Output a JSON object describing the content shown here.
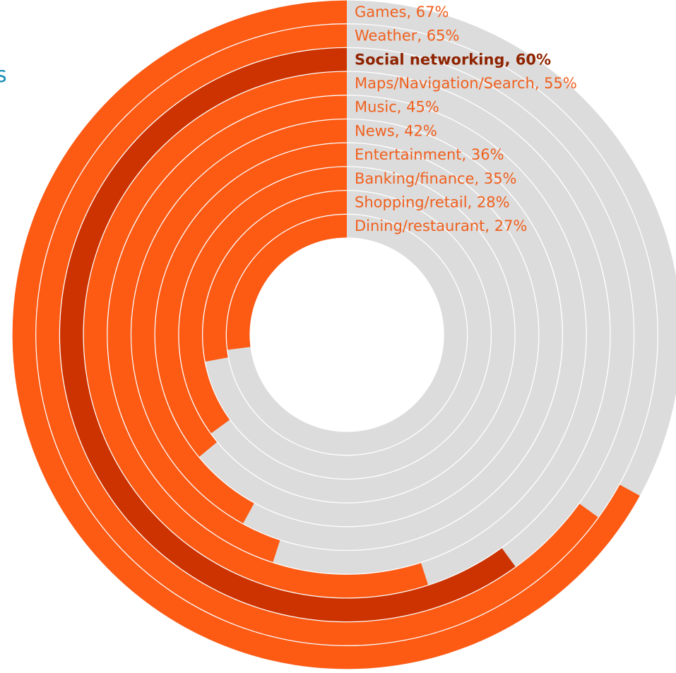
{
  "chart_data": {
    "type": "radial-bar",
    "title": "",
    "colors": {
      "bar": "#fd5a14",
      "highlight_bar": "#cc3300",
      "track": "#dcdcdc",
      "separator": "#ffffff",
      "label": "#f0601e",
      "highlight_label": "#8f2300"
    },
    "max_value": 100,
    "unit": "%",
    "series": [
      {
        "category": "Games",
        "value": 67,
        "label": "Games, 67%",
        "highlight": false
      },
      {
        "category": "Weather",
        "value": 65,
        "label": "Weather, 65%",
        "highlight": false
      },
      {
        "category": "Social networking",
        "value": 60,
        "label": "Social networking, 60%",
        "highlight": true
      },
      {
        "category": "Maps/Navigation/Search",
        "value": 55,
        "label": "Maps/Navigation/Search, 55%",
        "highlight": false
      },
      {
        "category": "Music",
        "value": 45,
        "label": "Music, 45%",
        "highlight": false
      },
      {
        "category": "News",
        "value": 42,
        "label": "News, 42%",
        "highlight": false
      },
      {
        "category": "Entertainment",
        "value": 36,
        "label": "Entertainment, 36%",
        "highlight": false
      },
      {
        "category": "Banking/finance",
        "value": 35,
        "label": "Banking/finance, 35%",
        "highlight": false
      },
      {
        "category": "Shopping/retail",
        "value": 28,
        "label": "Shopping/retail, 28%",
        "highlight": false
      },
      {
        "category": "Dining/restaurant",
        "value": 27,
        "label": "Dining/restaurant, 27%",
        "highlight": false
      }
    ]
  },
  "edge_fragment": {
    "text": "s",
    "color": "#1b8fb5"
  }
}
